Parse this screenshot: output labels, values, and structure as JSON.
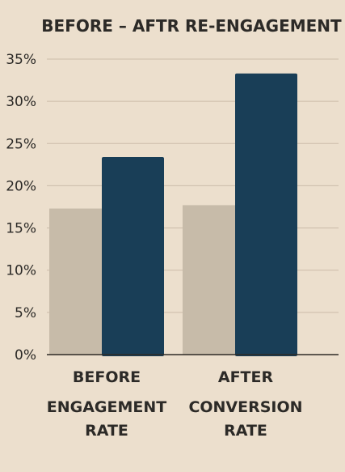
{
  "chart_data": {
    "type": "bar",
    "title": "BEFORE – AFTR RE-ENGAGEMENT",
    "categories": [
      "BEFORE",
      "AFTER"
    ],
    "series": [
      {
        "values": [
          17.3,
          17.7
        ],
        "color": "#c7bba9"
      },
      {
        "values": [
          23.4,
          33.3
        ],
        "color": "#193e57"
      }
    ],
    "category_sublabels": [
      [
        "ENGAGEMENT",
        "RATE"
      ],
      [
        "CONVERSION",
        "RATE"
      ]
    ],
    "y_ticks": [
      "0%",
      "5%",
      "10%",
      "15%",
      "20%",
      "25%",
      "30%",
      "35%"
    ],
    "ylim": [
      0,
      35
    ],
    "grid": true,
    "legend": "none"
  }
}
